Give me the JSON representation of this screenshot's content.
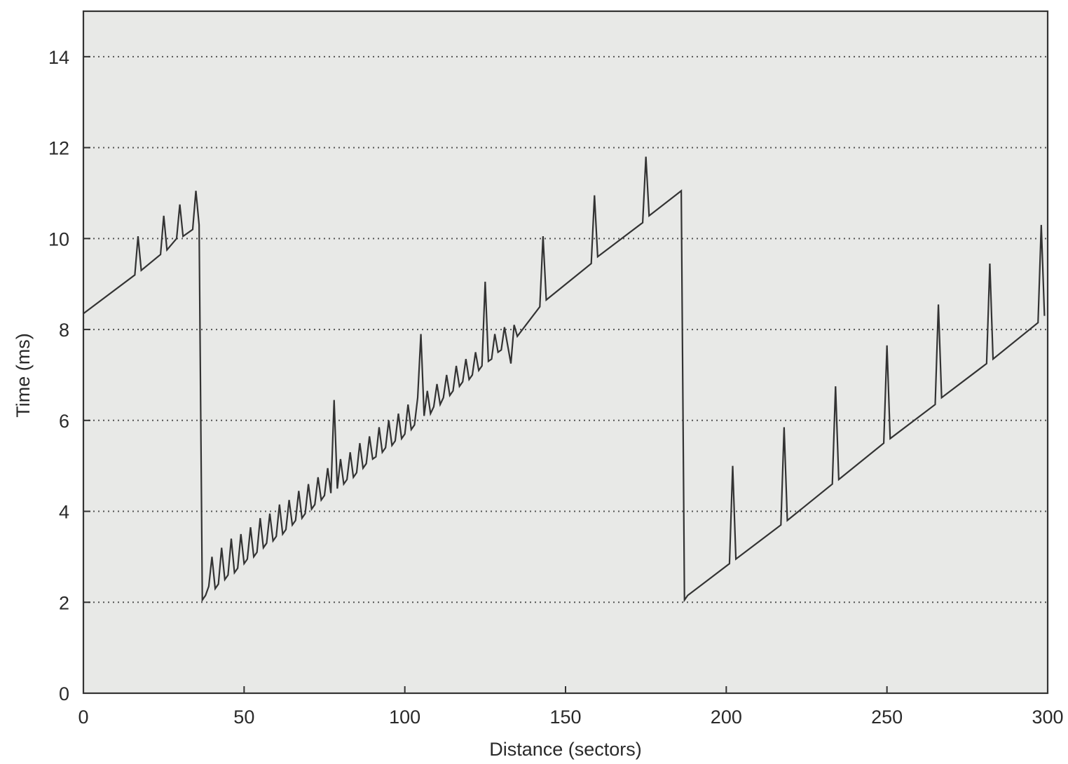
{
  "chart_data": {
    "type": "line",
    "title": "",
    "xlabel": "Distance (sectors)",
    "ylabel": "Time (ms)",
    "xlim": [
      0,
      300
    ],
    "ylim": [
      0,
      15
    ],
    "xticks": [
      0,
      50,
      100,
      150,
      200,
      250,
      300
    ],
    "yticks": [
      0,
      2,
      4,
      6,
      8,
      10,
      12,
      14
    ],
    "grid": "horizontal dotted",
    "legend": "none",
    "colors": {
      "background": "#e8e9e7",
      "line": "#333333",
      "grid": "#555555",
      "frame": "#333333"
    },
    "series": [
      {
        "x": [
          0,
          16,
          17,
          18,
          24,
          25,
          26,
          29,
          30,
          31,
          34,
          35,
          36,
          37,
          38,
          39,
          40,
          41,
          42,
          43,
          44,
          45,
          46,
          47,
          48,
          49,
          50,
          51,
          52,
          53,
          54,
          55,
          56,
          57,
          58,
          59,
          60,
          61,
          62,
          63,
          64,
          65,
          66,
          67,
          68,
          69,
          70,
          71,
          72,
          73,
          74,
          75,
          76,
          77,
          78,
          79,
          80,
          81,
          82,
          83,
          84,
          85,
          86,
          87,
          88,
          89,
          90,
          91,
          92,
          93,
          94,
          95,
          96,
          97,
          98,
          99,
          100,
          101,
          102,
          103,
          104,
          105,
          106,
          107,
          108,
          109,
          110,
          111,
          112,
          113,
          114,
          115,
          116,
          117,
          118,
          119,
          120,
          121,
          122,
          123,
          124,
          125,
          126,
          127,
          128,
          129,
          130,
          131,
          132,
          133,
          134,
          135,
          142,
          143,
          144,
          158,
          159,
          160,
          174,
          175,
          176,
          186,
          187,
          188,
          201,
          202,
          203,
          217,
          218,
          219,
          233,
          234,
          235,
          249,
          250,
          251,
          265,
          266,
          267,
          281,
          282,
          283,
          297,
          298,
          299
        ],
        "y": [
          8.35,
          9.2,
          10.05,
          9.3,
          9.65,
          10.5,
          9.75,
          10.0,
          10.75,
          10.05,
          10.2,
          11.05,
          10.3,
          2.05,
          2.15,
          2.35,
          3.0,
          2.3,
          2.4,
          3.2,
          2.5,
          2.6,
          3.4,
          2.65,
          2.75,
          3.5,
          2.85,
          2.95,
          3.65,
          3.0,
          3.1,
          3.85,
          3.2,
          3.3,
          3.95,
          3.35,
          3.45,
          4.15,
          3.5,
          3.6,
          4.25,
          3.7,
          3.8,
          4.45,
          3.85,
          3.95,
          4.6,
          4.05,
          4.15,
          4.75,
          4.25,
          4.35,
          4.95,
          4.4,
          6.45,
          4.5,
          5.15,
          4.6,
          4.7,
          5.3,
          4.75,
          4.85,
          5.5,
          4.95,
          5.05,
          5.65,
          5.15,
          5.2,
          5.85,
          5.3,
          5.4,
          6.0,
          5.45,
          5.55,
          6.15,
          5.6,
          5.7,
          6.35,
          5.8,
          5.9,
          6.5,
          7.9,
          6.1,
          6.65,
          6.15,
          6.3,
          6.8,
          6.35,
          6.5,
          7.0,
          6.55,
          6.65,
          7.2,
          6.75,
          6.85,
          7.35,
          6.9,
          7.0,
          7.5,
          7.1,
          7.2,
          9.05,
          7.3,
          7.35,
          7.9,
          7.5,
          7.55,
          8.05,
          7.65,
          7.25,
          8.1,
          7.85,
          8.5,
          10.05,
          8.65,
          9.45,
          10.95,
          9.6,
          10.35,
          11.8,
          10.5,
          11.05,
          2.05,
          2.15,
          2.85,
          5.0,
          2.95,
          3.7,
          5.85,
          3.8,
          4.6,
          6.75,
          4.7,
          5.5,
          7.65,
          5.6,
          6.35,
          8.55,
          6.5,
          7.25,
          9.45,
          7.35,
          8.15,
          10.3,
          8.3
        ]
      }
    ]
  }
}
